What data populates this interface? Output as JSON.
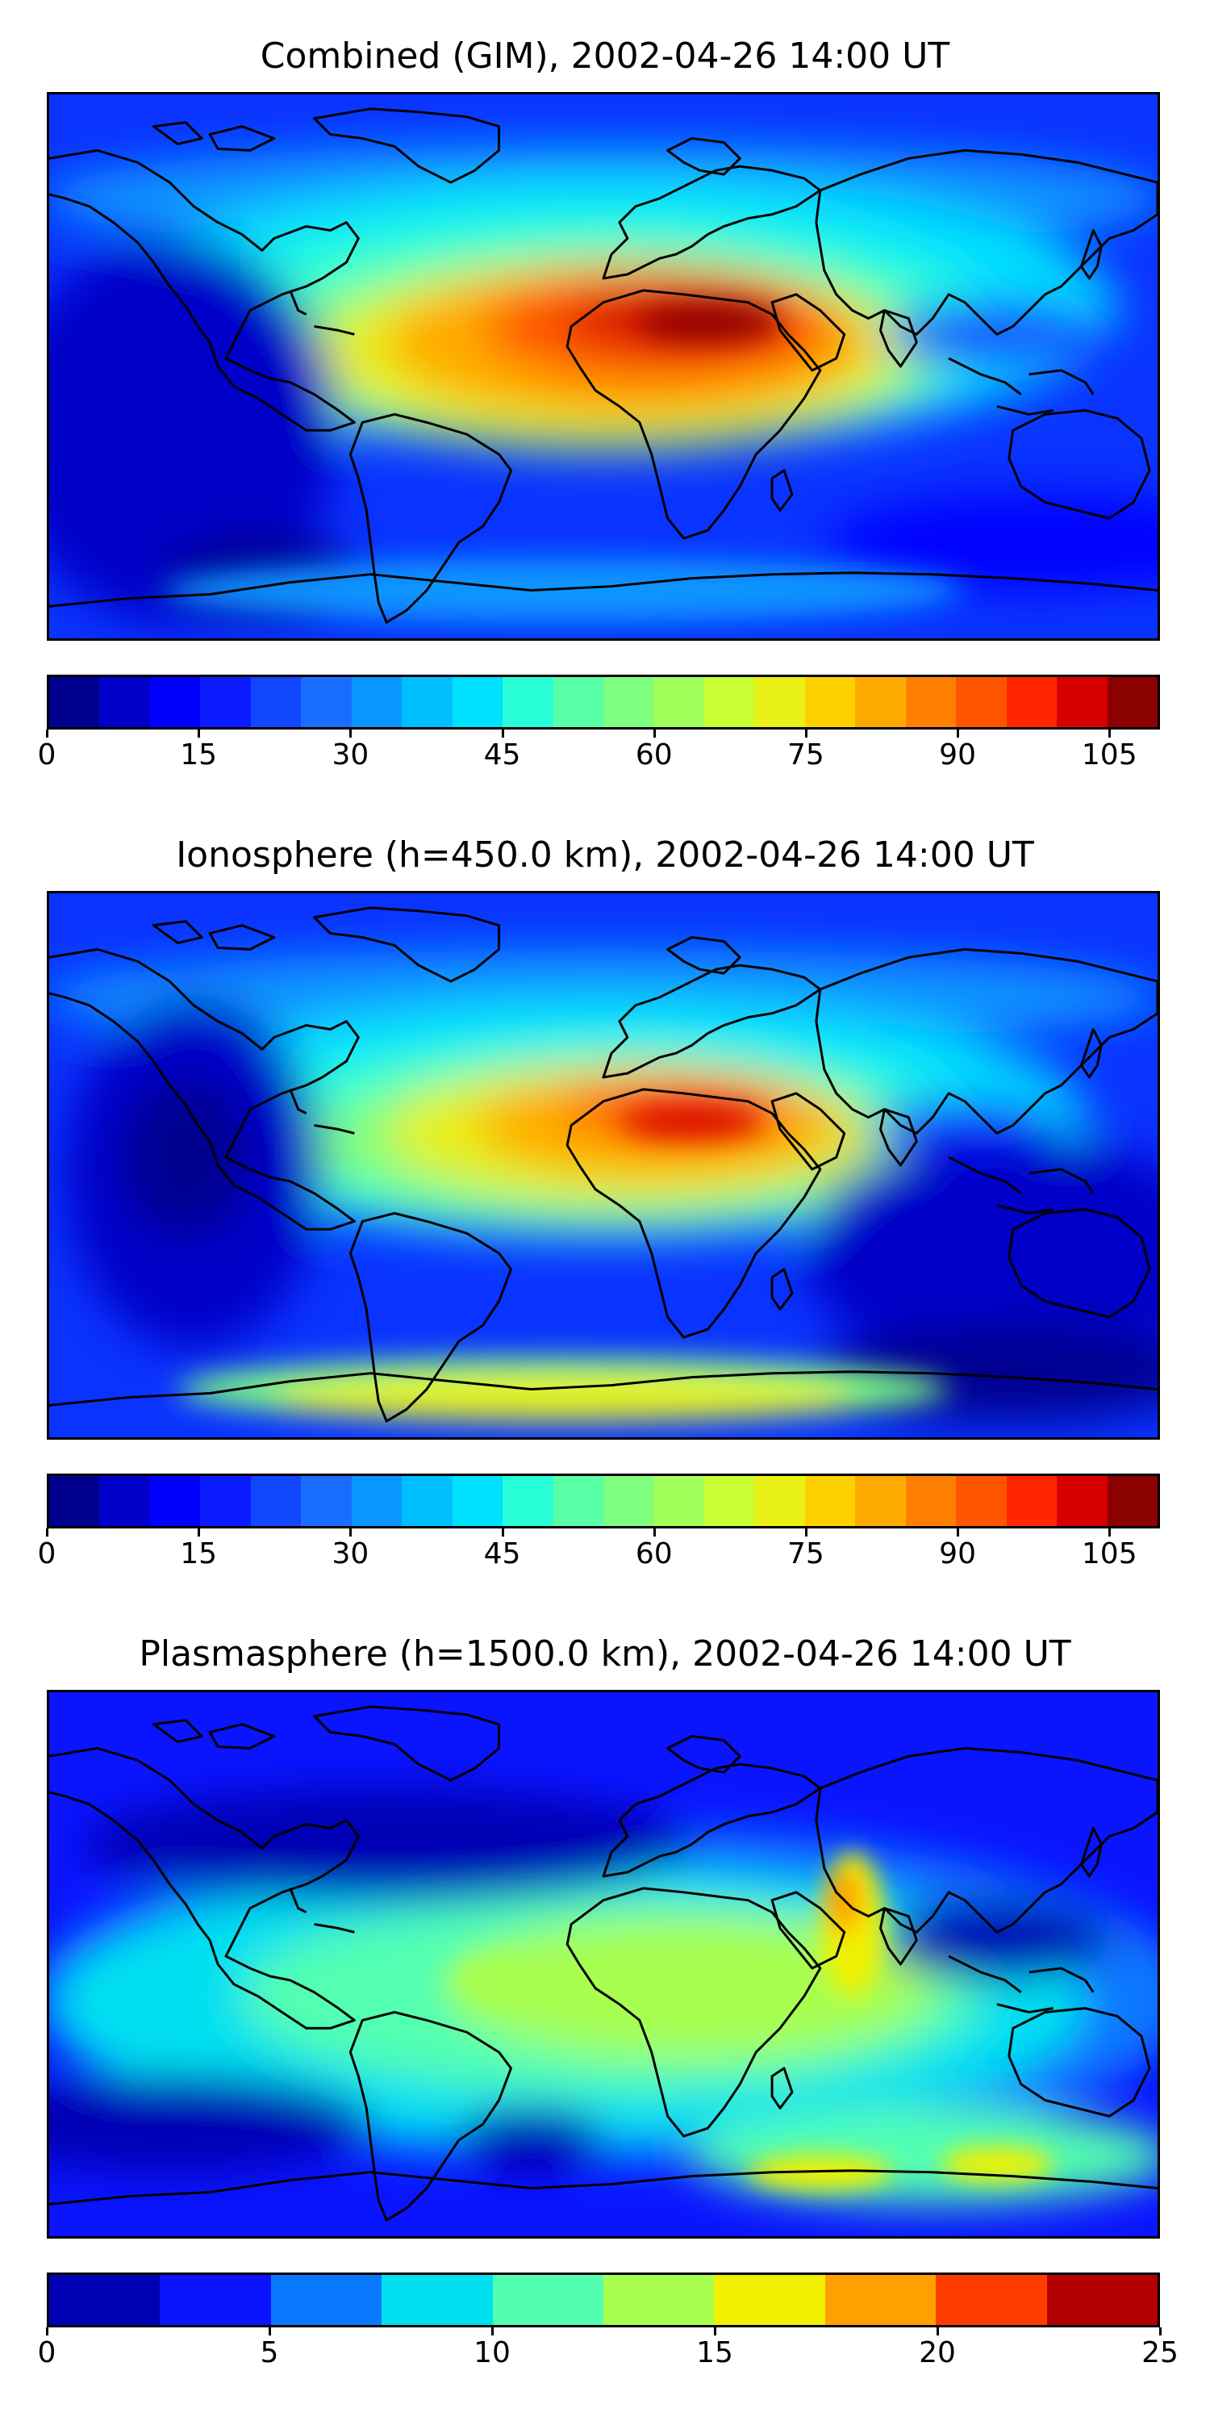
{
  "panels": [
    {
      "id": "combined",
      "title": "Combined (GIM), 2002-04-26 14:00 UT",
      "colorbar": {
        "min": 0,
        "max": 110,
        "ticks": [
          "0",
          "15",
          "30",
          "45",
          "60",
          "75",
          "90",
          "105"
        ],
        "tick_values": [
          0,
          15,
          30,
          45,
          60,
          75,
          90,
          105
        ],
        "bins": 22,
        "colors": [
          "#00008f",
          "#0000c8",
          "#0000ff",
          "#0a1cff",
          "#1246ff",
          "#1a6eff",
          "#0a96ff",
          "#00bfff",
          "#00e0ff",
          "#28ffd8",
          "#59ffa6",
          "#7eff80",
          "#a2ff5a",
          "#c8ff33",
          "#e8f016",
          "#ffd000",
          "#ffaa00",
          "#ff8000",
          "#ff5500",
          "#ff2600",
          "#d60000",
          "#8b0000"
        ]
      }
    },
    {
      "id": "ionosphere",
      "title": "Ionosphere  (h=450.0 km), 2002-04-26 14:00 UT",
      "colorbar": {
        "min": 0,
        "max": 110,
        "ticks": [
          "0",
          "15",
          "30",
          "45",
          "60",
          "75",
          "90",
          "105"
        ],
        "tick_values": [
          0,
          15,
          30,
          45,
          60,
          75,
          90,
          105
        ],
        "bins": 22,
        "colors": [
          "#00008f",
          "#0000c8",
          "#0000ff",
          "#0a1cff",
          "#1246ff",
          "#1a6eff",
          "#0a96ff",
          "#00bfff",
          "#00e0ff",
          "#28ffd8",
          "#59ffa6",
          "#7eff80",
          "#a2ff5a",
          "#c8ff33",
          "#e8f016",
          "#ffd000",
          "#ffaa00",
          "#ff8000",
          "#ff5500",
          "#ff2600",
          "#d60000",
          "#8b0000"
        ]
      }
    },
    {
      "id": "plasmasphere",
      "title": "Plasmasphere (h=1500.0 km), 2002-04-26 14:00 UT",
      "colorbar": {
        "min": 0,
        "max": 25,
        "ticks": [
          "0",
          "5",
          "10",
          "15",
          "20",
          "25"
        ],
        "tick_values": [
          0,
          5,
          10,
          15,
          20,
          25
        ],
        "bins": 10,
        "colors": [
          "#0000b4",
          "#0a14ff",
          "#0a78ff",
          "#00e0f0",
          "#52ffb0",
          "#a8ff50",
          "#f0f000",
          "#ffa000",
          "#ff3c00",
          "#b40000"
        ]
      }
    }
  ],
  "colors": {
    "coastline": "#000000",
    "frame": "#000000"
  }
}
